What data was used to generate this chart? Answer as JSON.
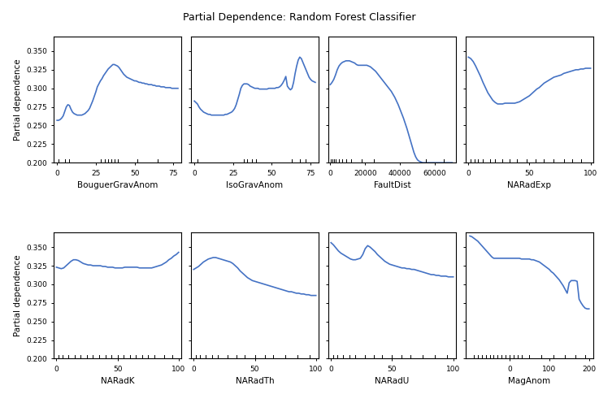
{
  "title": "Partial Dependence: Random Forest Classifier",
  "ylabel": "Partial dependence",
  "line_color": "#4472C4",
  "line_width": 1.2,
  "ylim": [
    0.2,
    0.37
  ],
  "yticks": [
    0.2,
    0.225,
    0.25,
    0.275,
    0.3,
    0.325,
    0.35
  ],
  "features": [
    {
      "name": "BouguerGravAnom",
      "xlim": [
        -2,
        80
      ],
      "xticks": [
        0,
        25,
        50,
        75
      ],
      "rug_x": [
        1,
        5,
        8,
        28,
        31,
        33,
        35,
        37,
        39,
        52,
        65
      ],
      "x": [
        0,
        1,
        2,
        3,
        4,
        5,
        6,
        7,
        8,
        9,
        10,
        11,
        12,
        13,
        14,
        15,
        16,
        17,
        18,
        19,
        20,
        21,
        22,
        23,
        24,
        25,
        26,
        27,
        28,
        29,
        30,
        31,
        32,
        33,
        34,
        35,
        36,
        37,
        38,
        39,
        40,
        41,
        42,
        43,
        44,
        45,
        46,
        47,
        48,
        49,
        50,
        51,
        52,
        53,
        54,
        55,
        56,
        57,
        58,
        59,
        60,
        61,
        62,
        63,
        64,
        65,
        66,
        67,
        68,
        69,
        70,
        71,
        72,
        73,
        74,
        75,
        76,
        77,
        78
      ],
      "y": [
        0.257,
        0.257,
        0.258,
        0.26,
        0.263,
        0.269,
        0.275,
        0.278,
        0.277,
        0.272,
        0.268,
        0.266,
        0.265,
        0.264,
        0.264,
        0.264,
        0.264,
        0.265,
        0.266,
        0.268,
        0.27,
        0.273,
        0.278,
        0.283,
        0.289,
        0.295,
        0.302,
        0.306,
        0.31,
        0.313,
        0.317,
        0.32,
        0.323,
        0.326,
        0.328,
        0.33,
        0.332,
        0.332,
        0.331,
        0.33,
        0.328,
        0.325,
        0.322,
        0.319,
        0.317,
        0.315,
        0.314,
        0.313,
        0.312,
        0.311,
        0.31,
        0.31,
        0.309,
        0.308,
        0.308,
        0.307,
        0.307,
        0.306,
        0.306,
        0.305,
        0.305,
        0.305,
        0.304,
        0.304,
        0.303,
        0.303,
        0.303,
        0.302,
        0.302,
        0.302,
        0.301,
        0.301,
        0.301,
        0.301,
        0.3,
        0.3,
        0.3,
        0.3,
        0.3
      ]
    },
    {
      "name": "IsoGravAnom",
      "xlim": [
        -2,
        80
      ],
      "xticks": [
        0,
        25,
        50,
        75
      ],
      "rug_x": [
        2,
        32,
        34,
        37,
        40,
        63,
        68,
        72
      ],
      "x": [
        0,
        1,
        2,
        3,
        4,
        5,
        6,
        7,
        8,
        9,
        10,
        11,
        12,
        13,
        14,
        15,
        16,
        17,
        18,
        19,
        20,
        21,
        22,
        23,
        24,
        25,
        26,
        27,
        28,
        29,
        30,
        31,
        32,
        33,
        34,
        35,
        36,
        37,
        38,
        39,
        40,
        41,
        42,
        43,
        44,
        45,
        46,
        47,
        48,
        49,
        50,
        51,
        52,
        53,
        54,
        55,
        56,
        57,
        58,
        59,
        60,
        61,
        62,
        63,
        64,
        65,
        66,
        67,
        68,
        69,
        70,
        71,
        72,
        73,
        74,
        75,
        76,
        77,
        78
      ],
      "y": [
        0.283,
        0.281,
        0.279,
        0.275,
        0.272,
        0.27,
        0.268,
        0.267,
        0.266,
        0.265,
        0.265,
        0.264,
        0.264,
        0.264,
        0.264,
        0.264,
        0.264,
        0.264,
        0.264,
        0.264,
        0.265,
        0.265,
        0.266,
        0.267,
        0.268,
        0.27,
        0.273,
        0.278,
        0.285,
        0.292,
        0.3,
        0.304,
        0.306,
        0.306,
        0.306,
        0.305,
        0.303,
        0.302,
        0.301,
        0.3,
        0.3,
        0.3,
        0.299,
        0.299,
        0.299,
        0.299,
        0.299,
        0.299,
        0.3,
        0.3,
        0.3,
        0.3,
        0.3,
        0.301,
        0.301,
        0.302,
        0.304,
        0.307,
        0.311,
        0.316,
        0.303,
        0.3,
        0.298,
        0.3,
        0.308,
        0.32,
        0.33,
        0.338,
        0.342,
        0.34,
        0.335,
        0.33,
        0.325,
        0.32,
        0.315,
        0.312,
        0.31,
        0.309,
        0.308
      ]
    },
    {
      "name": "FaultDist",
      "xlim": [
        -1000,
        72000
      ],
      "xticks": [
        0,
        20000,
        40000,
        60000
      ],
      "rug_x": [
        500,
        1000,
        2000,
        3000,
        5000,
        7000,
        9000,
        12000,
        18000,
        25000,
        55000,
        65000
      ],
      "x": [
        0,
        1000,
        2000,
        3000,
        4000,
        5000,
        6000,
        7000,
        8000,
        9000,
        10000,
        11000,
        12000,
        13000,
        14000,
        15000,
        16000,
        17000,
        18000,
        19000,
        20000,
        21000,
        22000,
        23000,
        24000,
        25000,
        26000,
        27000,
        28000,
        29000,
        30000,
        31000,
        32000,
        33000,
        34000,
        35000,
        36000,
        37000,
        38000,
        39000,
        40000,
        41000,
        42000,
        43000,
        44000,
        45000,
        46000,
        47000,
        48000,
        49000,
        50000,
        51000,
        52000,
        53000,
        54000,
        55000,
        56000,
        57000,
        58000,
        59000,
        60000,
        61000,
        62000,
        63000,
        64000,
        65000,
        66000,
        67000,
        68000,
        69000,
        70000
      ],
      "y": [
        0.305,
        0.308,
        0.312,
        0.318,
        0.325,
        0.33,
        0.333,
        0.335,
        0.336,
        0.337,
        0.337,
        0.337,
        0.336,
        0.335,
        0.334,
        0.332,
        0.331,
        0.331,
        0.331,
        0.331,
        0.331,
        0.331,
        0.33,
        0.329,
        0.327,
        0.325,
        0.323,
        0.32,
        0.317,
        0.314,
        0.311,
        0.308,
        0.305,
        0.302,
        0.299,
        0.296,
        0.292,
        0.288,
        0.283,
        0.278,
        0.272,
        0.266,
        0.26,
        0.253,
        0.246,
        0.238,
        0.23,
        0.222,
        0.214,
        0.208,
        0.204,
        0.202,
        0.201,
        0.2,
        0.2,
        0.2,
        0.2,
        0.2,
        0.2,
        0.2,
        0.2,
        0.2,
        0.2,
        0.2,
        0.2,
        0.2,
        0.2,
        0.2,
        0.2,
        0.2,
        0.2
      ]
    },
    {
      "name": "NARadExp",
      "xlim": [
        -2,
        102
      ],
      "xticks": [
        0,
        50,
        100
      ],
      "rug_x": [
        2,
        5,
        8,
        12,
        18,
        22,
        28,
        34,
        40,
        48,
        55,
        62,
        70,
        78,
        85,
        92
      ],
      "x": [
        0,
        2,
        4,
        6,
        8,
        10,
        12,
        14,
        16,
        18,
        20,
        22,
        24,
        26,
        28,
        30,
        32,
        34,
        36,
        38,
        40,
        42,
        44,
        46,
        48,
        50,
        52,
        54,
        56,
        58,
        60,
        62,
        64,
        66,
        68,
        70,
        72,
        74,
        76,
        78,
        80,
        82,
        84,
        86,
        88,
        90,
        92,
        94,
        96,
        98,
        100
      ],
      "y": [
        0.342,
        0.34,
        0.336,
        0.33,
        0.323,
        0.316,
        0.308,
        0.301,
        0.294,
        0.289,
        0.284,
        0.281,
        0.279,
        0.279,
        0.279,
        0.28,
        0.28,
        0.28,
        0.28,
        0.28,
        0.281,
        0.282,
        0.284,
        0.286,
        0.288,
        0.29,
        0.293,
        0.296,
        0.299,
        0.301,
        0.304,
        0.307,
        0.309,
        0.311,
        0.313,
        0.315,
        0.316,
        0.317,
        0.318,
        0.32,
        0.321,
        0.322,
        0.323,
        0.324,
        0.325,
        0.325,
        0.326,
        0.326,
        0.327,
        0.327,
        0.327
      ]
    },
    {
      "name": "NARadK",
      "xlim": [
        -2,
        102
      ],
      "xticks": [
        0,
        50,
        100
      ],
      "rug_x": [
        2,
        5,
        10,
        15,
        20,
        25,
        30,
        35,
        40,
        45,
        50,
        55,
        60,
        65,
        70,
        75,
        80,
        88,
        95
      ],
      "x": [
        0,
        2,
        4,
        6,
        8,
        10,
        12,
        14,
        16,
        18,
        20,
        22,
        24,
        26,
        28,
        30,
        32,
        34,
        36,
        38,
        40,
        42,
        44,
        46,
        48,
        50,
        52,
        54,
        56,
        58,
        60,
        62,
        64,
        66,
        68,
        70,
        72,
        74,
        76,
        78,
        80,
        82,
        84,
        86,
        88,
        90,
        92,
        94,
        96,
        98,
        100
      ],
      "y": [
        0.323,
        0.322,
        0.321,
        0.322,
        0.325,
        0.328,
        0.331,
        0.333,
        0.333,
        0.332,
        0.33,
        0.328,
        0.327,
        0.326,
        0.326,
        0.325,
        0.325,
        0.325,
        0.325,
        0.324,
        0.324,
        0.323,
        0.323,
        0.323,
        0.322,
        0.322,
        0.322,
        0.322,
        0.323,
        0.323,
        0.323,
        0.323,
        0.323,
        0.323,
        0.322,
        0.322,
        0.322,
        0.322,
        0.322,
        0.322,
        0.323,
        0.324,
        0.325,
        0.326,
        0.328,
        0.33,
        0.333,
        0.335,
        0.338,
        0.34,
        0.343
      ]
    },
    {
      "name": "NARadTh",
      "xlim": [
        -2,
        102
      ],
      "xticks": [
        0,
        50,
        100
      ],
      "rug_x": [
        2,
        5,
        10,
        15,
        20,
        28,
        35,
        42,
        50,
        58,
        65,
        75,
        85,
        95
      ],
      "x": [
        0,
        2,
        4,
        6,
        8,
        10,
        12,
        14,
        16,
        18,
        20,
        22,
        24,
        26,
        28,
        30,
        32,
        34,
        36,
        38,
        40,
        42,
        44,
        46,
        48,
        50,
        52,
        54,
        56,
        58,
        60,
        62,
        64,
        66,
        68,
        70,
        72,
        74,
        76,
        78,
        80,
        82,
        84,
        86,
        88,
        90,
        92,
        94,
        96,
        98,
        100
      ],
      "y": [
        0.32,
        0.322,
        0.324,
        0.327,
        0.33,
        0.332,
        0.334,
        0.335,
        0.336,
        0.336,
        0.335,
        0.334,
        0.333,
        0.332,
        0.331,
        0.33,
        0.328,
        0.325,
        0.322,
        0.318,
        0.315,
        0.312,
        0.309,
        0.307,
        0.305,
        0.304,
        0.303,
        0.302,
        0.301,
        0.3,
        0.299,
        0.298,
        0.297,
        0.296,
        0.295,
        0.294,
        0.293,
        0.292,
        0.291,
        0.29,
        0.29,
        0.289,
        0.288,
        0.288,
        0.287,
        0.287,
        0.286,
        0.286,
        0.285,
        0.285,
        0.285
      ]
    },
    {
      "name": "NARadU",
      "xlim": [
        -2,
        102
      ],
      "xticks": [
        0,
        50,
        100
      ],
      "rug_x": [
        2,
        5,
        10,
        15,
        20,
        28,
        35,
        42,
        50,
        58,
        65,
        75,
        85,
        95
      ],
      "x": [
        0,
        2,
        4,
        6,
        8,
        10,
        12,
        14,
        16,
        18,
        20,
        22,
        24,
        26,
        28,
        30,
        32,
        34,
        36,
        38,
        40,
        42,
        44,
        46,
        48,
        50,
        52,
        54,
        56,
        58,
        60,
        62,
        64,
        66,
        68,
        70,
        72,
        74,
        76,
        78,
        80,
        82,
        84,
        86,
        88,
        90,
        92,
        94,
        96,
        98,
        100
      ],
      "y": [
        0.356,
        0.353,
        0.349,
        0.345,
        0.342,
        0.34,
        0.338,
        0.336,
        0.334,
        0.333,
        0.333,
        0.334,
        0.335,
        0.34,
        0.348,
        0.352,
        0.35,
        0.347,
        0.344,
        0.34,
        0.337,
        0.334,
        0.331,
        0.329,
        0.327,
        0.326,
        0.325,
        0.324,
        0.323,
        0.322,
        0.322,
        0.321,
        0.321,
        0.32,
        0.32,
        0.319,
        0.318,
        0.317,
        0.316,
        0.315,
        0.314,
        0.313,
        0.313,
        0.312,
        0.312,
        0.311,
        0.311,
        0.311,
        0.31,
        0.31,
        0.31
      ]
    },
    {
      "name": "MagAnom",
      "xlim": [
        -110,
        210
      ],
      "xticks": [
        0,
        100,
        200
      ],
      "rug_x": [
        -90,
        -80,
        -70,
        -60,
        -50,
        -40,
        -30,
        -20,
        -10,
        0,
        10,
        20,
        30,
        50,
        80,
        110,
        140,
        165,
        190
      ],
      "x": [
        -100,
        -95,
        -90,
        -85,
        -80,
        -75,
        -70,
        -65,
        -60,
        -55,
        -50,
        -45,
        -40,
        -35,
        -30,
        -25,
        -20,
        -15,
        -10,
        -5,
        0,
        5,
        10,
        15,
        20,
        25,
        30,
        35,
        40,
        45,
        50,
        55,
        60,
        65,
        70,
        75,
        80,
        85,
        90,
        95,
        100,
        105,
        110,
        115,
        120,
        125,
        130,
        135,
        140,
        145,
        150,
        155,
        160,
        165,
        170,
        175,
        180,
        185,
        190,
        195,
        200
      ],
      "y": [
        0.365,
        0.364,
        0.362,
        0.36,
        0.358,
        0.355,
        0.352,
        0.349,
        0.346,
        0.343,
        0.34,
        0.337,
        0.335,
        0.335,
        0.335,
        0.335,
        0.335,
        0.335,
        0.335,
        0.335,
        0.335,
        0.335,
        0.335,
        0.335,
        0.335,
        0.335,
        0.334,
        0.334,
        0.334,
        0.334,
        0.334,
        0.333,
        0.333,
        0.332,
        0.331,
        0.33,
        0.328,
        0.326,
        0.324,
        0.322,
        0.32,
        0.317,
        0.315,
        0.312,
        0.309,
        0.306,
        0.302,
        0.298,
        0.293,
        0.288,
        0.302,
        0.305,
        0.305,
        0.305,
        0.304,
        0.28,
        0.275,
        0.271,
        0.268,
        0.267,
        0.267
      ]
    }
  ]
}
